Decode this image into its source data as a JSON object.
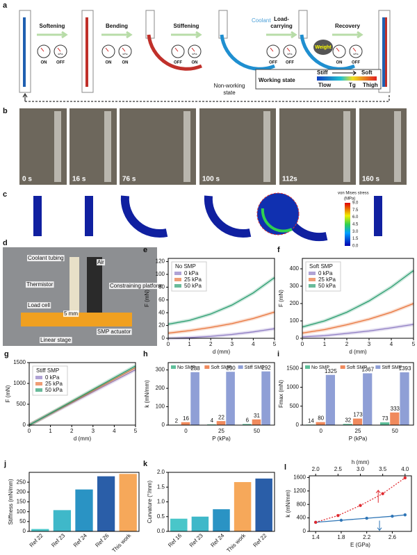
{
  "panel_a": {
    "label": "a",
    "steps": [
      "Softening",
      "Bending",
      "Stiffening",
      [
        "Load-",
        "carrying"
      ],
      "Recovery"
    ],
    "gauges": [
      [
        "ON",
        "OFF"
      ],
      [
        "ON",
        "ON"
      ],
      [
        "OFF",
        "ON"
      ],
      [
        "OFF",
        "OFF"
      ],
      [
        "ON",
        "OFF"
      ]
    ],
    "pressure_unit": "kPa",
    "coolant": "Coolant",
    "weight": "Weight",
    "non_working": [
      "Non-working",
      "state"
    ],
    "working_state": "Working state",
    "stiff": "Stiff",
    "soft": "Soft",
    "t_low": "Tlow",
    "t_g": "Tg",
    "t_high": "Thigh"
  },
  "panel_b": {
    "label": "b",
    "times": [
      "0 s",
      "16 s",
      "76 s",
      "100 s",
      "112s",
      "160 s"
    ]
  },
  "panel_c": {
    "label": "c",
    "colorbar_title": "von Mises stress",
    "colorbar_unit": "(MPa)",
    "colorbar_ticks": [
      "9.0",
      "7.5",
      "6.0",
      "4.5",
      "3.0",
      "1.5",
      "0.0"
    ]
  },
  "panel_d": {
    "label": "d",
    "labels": [
      "Coolant tubing",
      "Air",
      "Thermistor",
      "Constraining platform",
      "Load cell",
      "5 mm",
      "SMP actuator",
      "Linear stage"
    ]
  },
  "chart_data": [
    {
      "type": "line",
      "panel": "e",
      "legend_title": "No SMP",
      "xlabel": "d (mm)",
      "ylabel": "F (mN)",
      "xlim": [
        0,
        5
      ],
      "xticks": [
        0,
        1,
        2,
        3,
        4,
        5
      ],
      "ylim": [
        0,
        125
      ],
      "yticks": [
        0,
        20,
        40,
        60,
        80,
        100,
        120
      ],
      "x": [
        0,
        1,
        2,
        3,
        4,
        5
      ],
      "series": [
        {
          "name": "0 kPa",
          "color": "#8e7cc3",
          "values": [
            0,
            1,
            3,
            6,
            10,
            15
          ]
        },
        {
          "name": "25 kPa",
          "color": "#e8743b",
          "values": [
            8,
            12,
            17,
            23,
            31,
            41
          ]
        },
        {
          "name": "50 kPa",
          "color": "#2a9d6f",
          "values": [
            22,
            28,
            38,
            52,
            71,
            95
          ]
        }
      ]
    },
    {
      "type": "line",
      "panel": "f",
      "legend_title": "Soft SMP",
      "xlabel": "d (mm)",
      "ylabel": "F (mN)",
      "xlim": [
        0,
        5
      ],
      "xticks": [
        0,
        1,
        2,
        3,
        4,
        5
      ],
      "ylim": [
        0,
        460
      ],
      "yticks": [
        0,
        100,
        200,
        300,
        400
      ],
      "x": [
        0,
        1,
        2,
        3,
        4,
        5
      ],
      "series": [
        {
          "name": "0 kPa",
          "color": "#8e7cc3",
          "values": [
            8,
            15,
            28,
            42,
            60,
            80
          ]
        },
        {
          "name": "25 kPa",
          "color": "#e8743b",
          "values": [
            30,
            50,
            78,
            110,
            150,
            200
          ]
        },
        {
          "name": "50 kPa",
          "color": "#2a9d6f",
          "values": [
            65,
            100,
            150,
            215,
            295,
            390
          ]
        }
      ]
    },
    {
      "type": "line",
      "panel": "g",
      "legend_title": "Stiff SMP",
      "xlabel": "d (mm)",
      "ylabel": "F (mN)",
      "xlim": [
        0,
        5
      ],
      "xticks": [
        0,
        1,
        2,
        3,
        4,
        5
      ],
      "ylim": [
        0,
        1500
      ],
      "yticks": [
        0,
        500,
        1000,
        1500
      ],
      "x": [
        0,
        5
      ],
      "series": [
        {
          "name": "0 kPa",
          "color": "#8e7cc3",
          "values": [
            0,
            1330
          ]
        },
        {
          "name": "25 kPa",
          "color": "#e8743b",
          "values": [
            0,
            1380
          ]
        },
        {
          "name": "50 kPa",
          "color": "#2a9d6f",
          "values": [
            0,
            1420
          ]
        }
      ]
    },
    {
      "type": "bar",
      "panel": "h",
      "xlabel": "P (kPa)",
      "ylabel": "k (mN/mm)",
      "categories": [
        "0",
        "25",
        "50"
      ],
      "ylim": [
        0,
        340
      ],
      "yticks": [
        0,
        100,
        200,
        300
      ],
      "show_values": true,
      "series": [
        {
          "name": "No SMP",
          "color": "#5fbf9a",
          "values": [
            2,
            4,
            6
          ]
        },
        {
          "name": "Soft SMP",
          "color": "#f08a5d",
          "values": [
            16,
            22,
            31
          ]
        },
        {
          "name": "Stiff SMP",
          "color": "#8f9fd6",
          "values": [
            288,
            290,
            292
          ]
        }
      ]
    },
    {
      "type": "bar",
      "panel": "i",
      "xlabel": "P (kPa)",
      "ylabel": "Fmax (mN)",
      "categories": [
        "0",
        "25",
        "50"
      ],
      "ylim": [
        0,
        1650
      ],
      "yticks": [
        0,
        500,
        1000,
        1500
      ],
      "show_values": true,
      "series": [
        {
          "name": "No SMP",
          "color": "#5fbf9a",
          "values": [
            14,
            32,
            73
          ]
        },
        {
          "name": "Soft SMP",
          "color": "#f08a5d",
          "values": [
            80,
            173,
            333
          ]
        },
        {
          "name": "Stiff SMP",
          "color": "#8f9fd6",
          "values": [
            1325,
            1367,
            1393
          ]
        }
      ]
    },
    {
      "type": "bar",
      "panel": "j",
      "ylabel": "Stiffness (mN/mm)",
      "categories": [
        "Ref 22",
        "Ref 23",
        "Ref 24",
        "Ref 26",
        "This work"
      ],
      "values": [
        12,
        108,
        213,
        280,
        292
      ],
      "colors": [
        "#49c6c9",
        "#3fb8c9",
        "#2a93c4",
        "#2a5ea8",
        "#f6a85a"
      ],
      "ylim": [
        0,
        300
      ],
      "yticks": [
        0,
        50,
        100,
        150,
        200,
        250
      ]
    },
    {
      "type": "bar",
      "panel": "k",
      "ylabel": "Curvature (°/mm)",
      "categories": [
        "Ref 16",
        "Ref 23",
        "Ref 24",
        "This work",
        "Ref 22"
      ],
      "values": [
        0.43,
        0.5,
        0.75,
        1.67,
        1.79
      ],
      "colors": [
        "#49c6c9",
        "#3fb8c9",
        "#2a93c4",
        "#f6a85a",
        "#2a5ea8"
      ],
      "ylim": [
        0,
        2.0
      ],
      "yticks": [
        {
          "value": 0,
          "label": "0.0"
        },
        0.5,
        {
          "value": 1,
          "label": "1.0"
        },
        1.5,
        {
          "value": 2,
          "label": "2.0"
        }
      ]
    },
    {
      "type": "line",
      "panel": "l",
      "xlabel": "E (GPa)",
      "x2label": "h (mm)",
      "ylabel": "k (mN/mm)",
      "xlim": [
        1.3,
        2.9
      ],
      "xticks": [
        1.4,
        1.8,
        2.2,
        2.6
      ],
      "x2lim": [
        1.857,
        4.143
      ],
      "x2ticks": [
        {
          "value": 2,
          "label": "2.0"
        },
        2.5,
        {
          "value": 3,
          "label": "3.0"
        },
        3.5,
        {
          "value": 4,
          "label": "4.0"
        }
      ],
      "ylim": [
        0,
        1650
      ],
      "yticks": [
        0,
        400,
        800,
        1200,
        1600
      ],
      "markers": true,
      "series": [
        {
          "color": "#2e75b6",
          "x": [
            1.4,
            1.8,
            2.2,
            2.6,
            2.8
          ],
          "values": [
            270,
            330,
            390,
            450,
            490
          ]
        },
        {
          "color": "#e0282e",
          "axis": "x2",
          "dashed": true,
          "x": [
            2.0,
            2.5,
            3.0,
            3.5,
            4.0
          ],
          "values": [
            270,
            470,
            770,
            1120,
            1590
          ]
        }
      ]
    }
  ]
}
